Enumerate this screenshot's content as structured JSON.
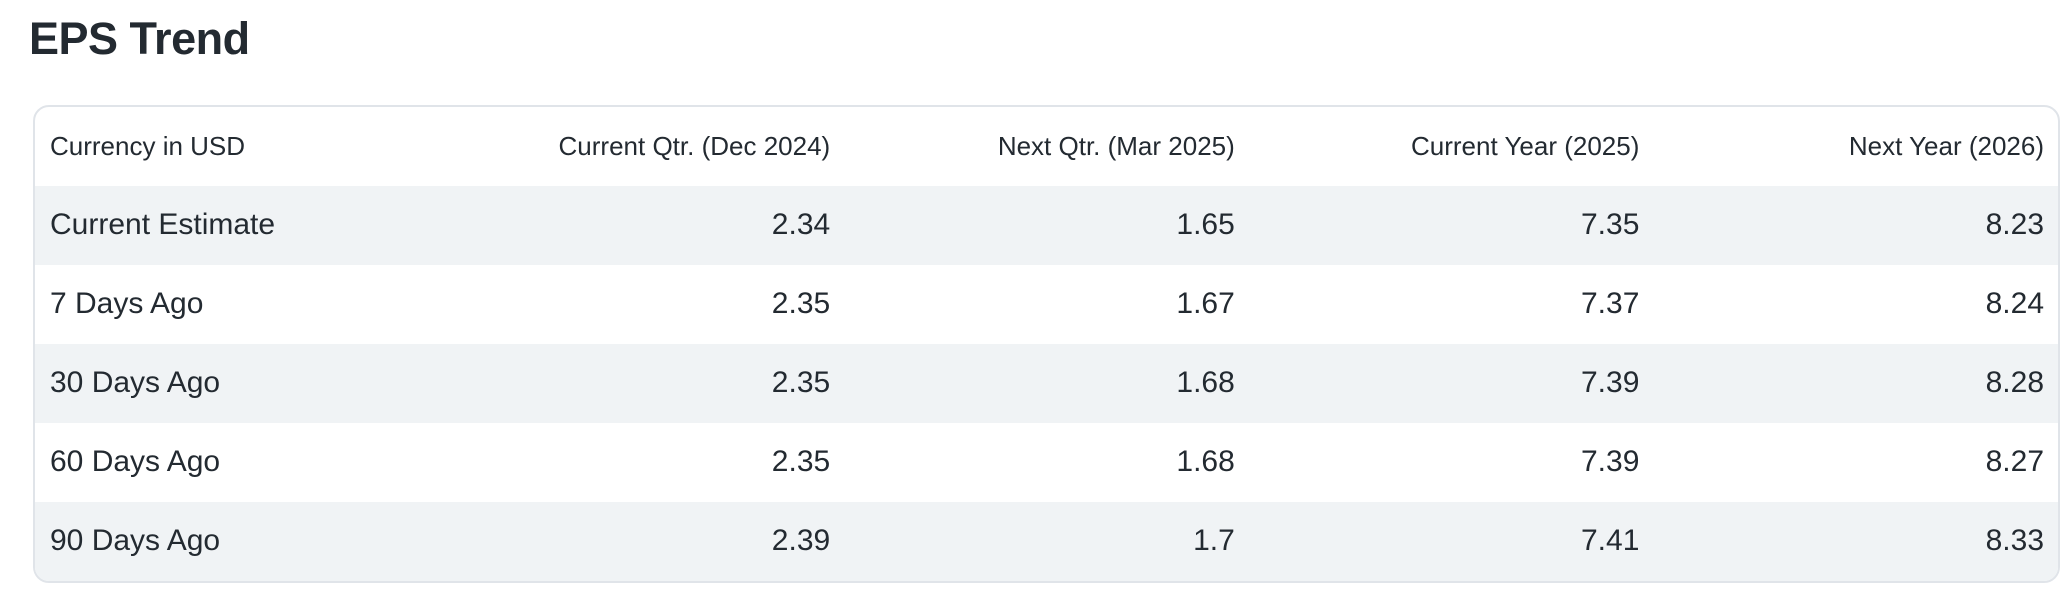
{
  "page": {
    "title": "EPS Trend"
  },
  "table": {
    "columns": [
      {
        "label": "Currency in USD"
      },
      {
        "label": "Current Qtr. (Dec 2024)"
      },
      {
        "label": "Next Qtr. (Mar 2025)"
      },
      {
        "label": "Current Year (2025)"
      },
      {
        "label": "Next Year (2026)"
      }
    ],
    "rows": [
      {
        "label": "Current Estimate",
        "values": [
          "2.34",
          "1.65",
          "7.35",
          "8.23"
        ]
      },
      {
        "label": "7 Days Ago",
        "values": [
          "2.35",
          "1.67",
          "7.37",
          "8.24"
        ]
      },
      {
        "label": "30 Days Ago",
        "values": [
          "2.35",
          "1.68",
          "7.39",
          "8.28"
        ]
      },
      {
        "label": "60 Days Ago",
        "values": [
          "2.35",
          "1.68",
          "7.39",
          "8.27"
        ]
      },
      {
        "label": "90 Days Ago",
        "values": [
          "2.39",
          "1.7",
          "7.41",
          "8.33"
        ]
      }
    ]
  },
  "colors": {
    "text": "#232a31",
    "stripe": "#f0f3f5",
    "border": "#e0e4e9",
    "background": "#ffffff"
  }
}
